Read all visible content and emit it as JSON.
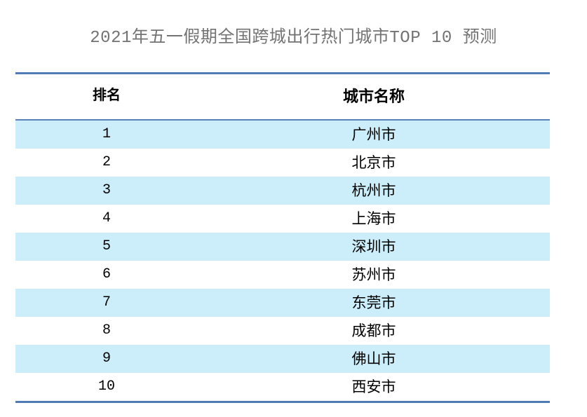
{
  "title": "2021年五一假期全国跨城出行热门城市TOP 10 预测",
  "colors": {
    "rule_blue": "#4f7cb5",
    "row_highlight": "#cbeefa",
    "title_gray": "#737373",
    "text_black": "#000000",
    "background": "#ffffff"
  },
  "table": {
    "columns": [
      "排名",
      "城市名称"
    ],
    "rows": [
      {
        "rank": "1",
        "city": "广州市"
      },
      {
        "rank": "2",
        "city": "北京市"
      },
      {
        "rank": "3",
        "city": "杭州市"
      },
      {
        "rank": "4",
        "city": "上海市"
      },
      {
        "rank": "5",
        "city": "深圳市"
      },
      {
        "rank": "6",
        "city": "苏州市"
      },
      {
        "rank": "7",
        "city": "东莞市"
      },
      {
        "rank": "8",
        "city": "成都市"
      },
      {
        "rank": "9",
        "city": "佛山市"
      },
      {
        "rank": "10",
        "city": "西安市"
      }
    ]
  },
  "chart_data": {
    "type": "table",
    "title": "2021年五一假期全国跨城出行热门城市TOP 10 预测",
    "columns": [
      "排名",
      "城市名称"
    ],
    "rows": [
      [
        "1",
        "广州市"
      ],
      [
        "2",
        "北京市"
      ],
      [
        "3",
        "杭州市"
      ],
      [
        "4",
        "上海市"
      ],
      [
        "5",
        "深圳市"
      ],
      [
        "6",
        "苏州市"
      ],
      [
        "7",
        "东莞市"
      ],
      [
        "8",
        "成都市"
      ],
      [
        "9",
        "佛山市"
      ],
      [
        "10",
        "西安市"
      ]
    ],
    "layout_hints": {
      "striped_rows": "odd rows light blue (#cbeefa), even rows white",
      "borders": "steel-blue top rule, rule under header, bottom rule; no vertical borders",
      "alignment": "both columns center-aligned"
    }
  }
}
